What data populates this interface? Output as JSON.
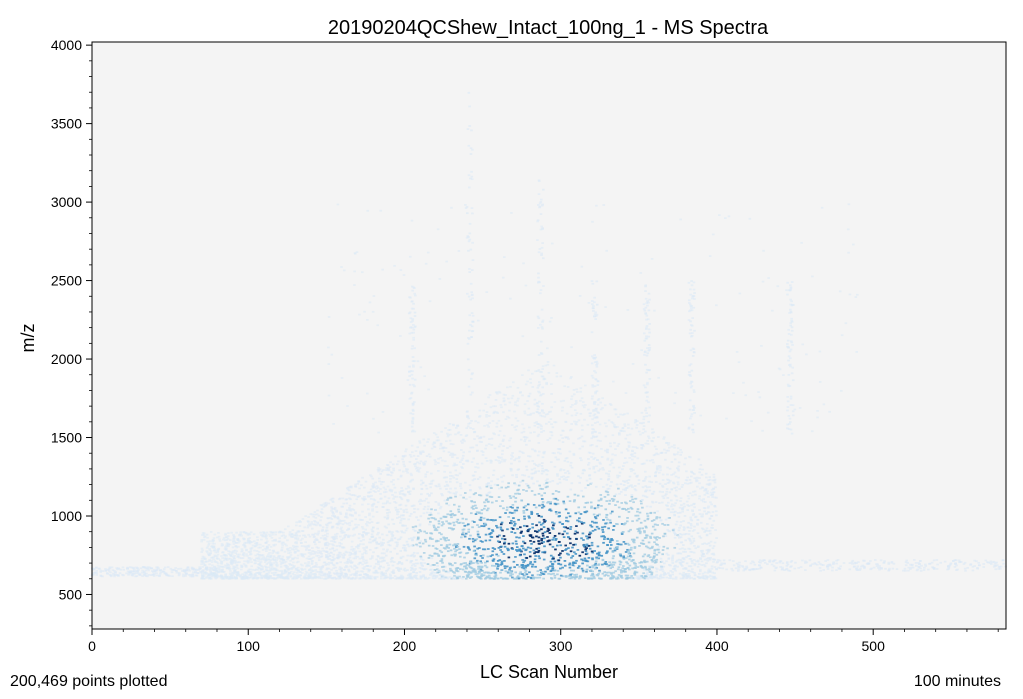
{
  "chart_data": {
    "type": "heatmap",
    "title": "20190204QCShew_Intact_100ng_1 - MS Spectra",
    "xlabel": "LC Scan Number",
    "ylabel": "m/z",
    "xlim": [
      0,
      585
    ],
    "ylim": [
      280,
      4020
    ],
    "x_ticks": [
      0,
      100,
      200,
      300,
      400,
      500
    ],
    "y_ticks": [
      500,
      1000,
      1500,
      2000,
      2500,
      3000,
      3500,
      4000
    ],
    "grid": false,
    "plot_background": "#f4f4f4",
    "colormap": [
      "#dbe9f6",
      "#9ecae1",
      "#4292c6",
      "#08306b"
    ],
    "series": [
      {
        "type": "hexbin-density",
        "description": "Spectra points plotted by LC scan vs m/z",
        "x_range": [
          0,
          585
        ],
        "y_range": [
          600,
          3700
        ],
        "dense_region": {
          "x": [
            160,
            400
          ],
          "y": [
            600,
            1600
          ]
        },
        "peak_density_at": {
          "x": 290,
          "y": 850
        }
      }
    ],
    "annotations": {
      "points_plotted": "200,469 points plotted",
      "duration": "100 minutes"
    }
  }
}
